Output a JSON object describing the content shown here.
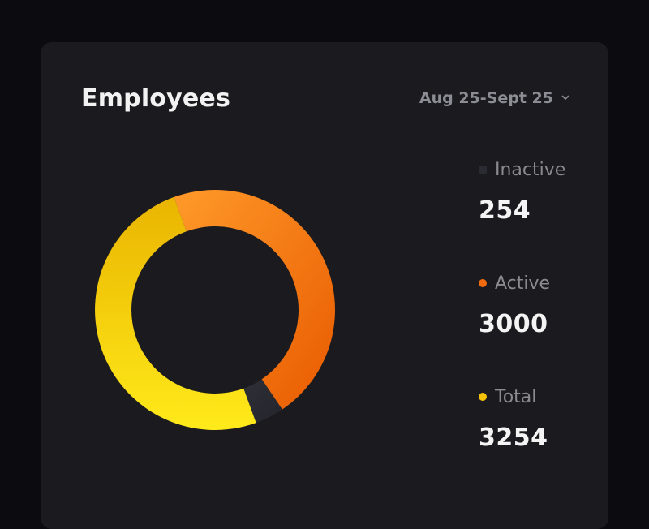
{
  "card": {
    "title": "Employees",
    "date_range": {
      "label": "Aug 25-Sept 25",
      "icon": "chevron-down-icon"
    }
  },
  "legend": [
    {
      "label": "Inactive",
      "value": "254",
      "color": "#2a2b33",
      "marker": "square"
    },
    {
      "label": "Active",
      "value": "3000",
      "color": "#f06a10",
      "marker": "circle"
    },
    {
      "label": "Total",
      "value": "3254",
      "color": "#f5c20a",
      "marker": "circle"
    }
  ],
  "chart_data": {
    "type": "pie",
    "style": "donut",
    "segments": [
      {
        "label": "Active",
        "value": 3000,
        "color": "#f06a10"
      },
      {
        "label": "Inactive",
        "value": 254,
        "color": "#2a2b33"
      },
      {
        "label": "Total",
        "value": 3254,
        "color": "#f5c20a"
      }
    ]
  }
}
